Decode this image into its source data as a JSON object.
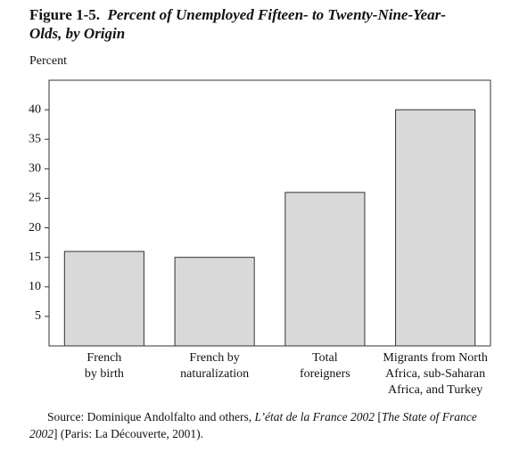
{
  "chart_data": {
    "type": "bar",
    "figure_label": "Figure 1-5.",
    "title": "Percent of Unemployed Fifteen- to Twenty-Nine-Year-Olds, by Origin",
    "y_label": "Percent",
    "categories": [
      [
        "French",
        "by birth"
      ],
      [
        "French by",
        "naturalization"
      ],
      [
        "Total",
        "foreigners"
      ],
      [
        "Migrants from North",
        "Africa, sub-Saharan",
        "Africa, and Turkey"
      ]
    ],
    "values": [
      16,
      15,
      26,
      40
    ],
    "color": "#d9d9d9",
    "ylim": [
      0,
      45
    ],
    "yticks": [
      5,
      10,
      15,
      20,
      25,
      30,
      35,
      40
    ],
    "source": [
      "Source: Dominique Andolfalto and others, ",
      "L’état de la France 2002",
      " [",
      "The State of France 2002",
      "] (Paris: La Découverte, 2001)."
    ]
  }
}
